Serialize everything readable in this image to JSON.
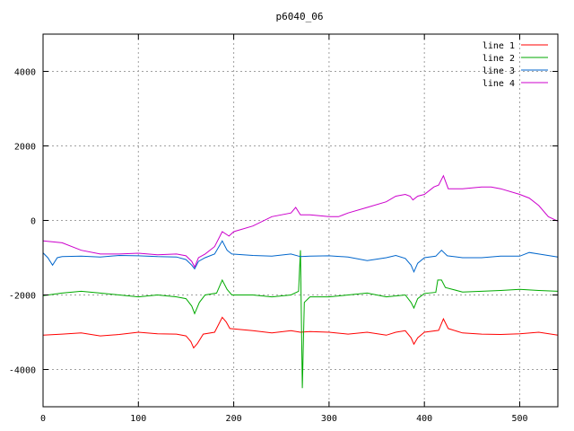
{
  "chart_data": {
    "type": "line",
    "title": "p6040_06",
    "xlabel": "",
    "ylabel": "",
    "xlim": [
      0,
      540
    ],
    "ylim": [
      -5000,
      5000
    ],
    "x_ticks": [
      0,
      100,
      200,
      300,
      400,
      500
    ],
    "y_ticks": [
      -4000,
      -2000,
      0,
      2000,
      4000
    ],
    "grid": true,
    "legend_position": "top-right",
    "series": [
      {
        "name": "line 1",
        "color": "#ff0000",
        "points": [
          [
            0,
            -3080
          ],
          [
            20,
            -3050
          ],
          [
            40,
            -3020
          ],
          [
            60,
            -3100
          ],
          [
            80,
            -3060
          ],
          [
            100,
            -3000
          ],
          [
            120,
            -3040
          ],
          [
            140,
            -3050
          ],
          [
            150,
            -3100
          ],
          [
            155,
            -3250
          ],
          [
            158,
            -3420
          ],
          [
            162,
            -3300
          ],
          [
            168,
            -3050
          ],
          [
            180,
            -3000
          ],
          [
            188,
            -2600
          ],
          [
            192,
            -2720
          ],
          [
            196,
            -2900
          ],
          [
            220,
            -2960
          ],
          [
            240,
            -3020
          ],
          [
            260,
            -2960
          ],
          [
            270,
            -3000
          ],
          [
            280,
            -2980
          ],
          [
            300,
            -3000
          ],
          [
            320,
            -3050
          ],
          [
            340,
            -3000
          ],
          [
            360,
            -3080
          ],
          [
            370,
            -3000
          ],
          [
            380,
            -2960
          ],
          [
            386,
            -3150
          ],
          [
            389,
            -3320
          ],
          [
            393,
            -3150
          ],
          [
            400,
            -3000
          ],
          [
            415,
            -2950
          ],
          [
            420,
            -2640
          ],
          [
            425,
            -2900
          ],
          [
            440,
            -3020
          ],
          [
            460,
            -3050
          ],
          [
            480,
            -3060
          ],
          [
            500,
            -3040
          ],
          [
            520,
            -3000
          ],
          [
            540,
            -3080
          ]
        ]
      },
      {
        "name": "line 2",
        "color": "#00aa00",
        "points": [
          [
            0,
            -2020
          ],
          [
            20,
            -1950
          ],
          [
            40,
            -1900
          ],
          [
            60,
            -1950
          ],
          [
            80,
            -2000
          ],
          [
            100,
            -2050
          ],
          [
            120,
            -2000
          ],
          [
            140,
            -2050
          ],
          [
            150,
            -2100
          ],
          [
            156,
            -2300
          ],
          [
            159,
            -2500
          ],
          [
            164,
            -2200
          ],
          [
            170,
            -2000
          ],
          [
            182,
            -1950
          ],
          [
            188,
            -1600
          ],
          [
            193,
            -1850
          ],
          [
            198,
            -2000
          ],
          [
            220,
            -2000
          ],
          [
            240,
            -2050
          ],
          [
            260,
            -2000
          ],
          [
            268,
            -1900
          ],
          [
            270,
            -800
          ],
          [
            272,
            -4500
          ],
          [
            274,
            -2200
          ],
          [
            280,
            -2050
          ],
          [
            300,
            -2050
          ],
          [
            320,
            -2000
          ],
          [
            340,
            -1950
          ],
          [
            360,
            -2050
          ],
          [
            380,
            -2000
          ],
          [
            386,
            -2200
          ],
          [
            389,
            -2350
          ],
          [
            393,
            -2100
          ],
          [
            400,
            -1960
          ],
          [
            412,
            -1930
          ],
          [
            414,
            -1600
          ],
          [
            418,
            -1600
          ],
          [
            422,
            -1800
          ],
          [
            440,
            -1920
          ],
          [
            460,
            -1900
          ],
          [
            480,
            -1880
          ],
          [
            500,
            -1850
          ],
          [
            520,
            -1880
          ],
          [
            540,
            -1900
          ]
        ]
      },
      {
        "name": "line 3",
        "color": "#0066cc",
        "points": [
          [
            0,
            -870
          ],
          [
            5,
            -1000
          ],
          [
            10,
            -1200
          ],
          [
            15,
            -1000
          ],
          [
            20,
            -970
          ],
          [
            40,
            -960
          ],
          [
            60,
            -980
          ],
          [
            80,
            -940
          ],
          [
            100,
            -950
          ],
          [
            120,
            -970
          ],
          [
            140,
            -980
          ],
          [
            150,
            -1050
          ],
          [
            156,
            -1200
          ],
          [
            159,
            -1300
          ],
          [
            163,
            -1100
          ],
          [
            170,
            -1000
          ],
          [
            180,
            -900
          ],
          [
            188,
            -550
          ],
          [
            193,
            -800
          ],
          [
            198,
            -900
          ],
          [
            220,
            -940
          ],
          [
            240,
            -960
          ],
          [
            260,
            -900
          ],
          [
            270,
            -970
          ],
          [
            280,
            -960
          ],
          [
            300,
            -950
          ],
          [
            320,
            -980
          ],
          [
            340,
            -1080
          ],
          [
            360,
            -1000
          ],
          [
            370,
            -940
          ],
          [
            380,
            -1020
          ],
          [
            386,
            -1200
          ],
          [
            389,
            -1380
          ],
          [
            393,
            -1150
          ],
          [
            400,
            -1000
          ],
          [
            412,
            -960
          ],
          [
            418,
            -800
          ],
          [
            424,
            -950
          ],
          [
            440,
            -1000
          ],
          [
            460,
            -1000
          ],
          [
            480,
            -960
          ],
          [
            500,
            -960
          ],
          [
            510,
            -860
          ],
          [
            520,
            -900
          ],
          [
            540,
            -980
          ]
        ]
      },
      {
        "name": "line 4",
        "color": "#cc00cc",
        "points": [
          [
            0,
            -550
          ],
          [
            20,
            -600
          ],
          [
            40,
            -800
          ],
          [
            60,
            -900
          ],
          [
            80,
            -900
          ],
          [
            100,
            -880
          ],
          [
            120,
            -920
          ],
          [
            140,
            -900
          ],
          [
            150,
            -950
          ],
          [
            156,
            -1100
          ],
          [
            159,
            -1250
          ],
          [
            163,
            -1000
          ],
          [
            170,
            -900
          ],
          [
            180,
            -700
          ],
          [
            188,
            -300
          ],
          [
            195,
            -420
          ],
          [
            200,
            -300
          ],
          [
            220,
            -150
          ],
          [
            240,
            100
          ],
          [
            260,
            200
          ],
          [
            265,
            350
          ],
          [
            270,
            150
          ],
          [
            280,
            150
          ],
          [
            300,
            100
          ],
          [
            310,
            100
          ],
          [
            320,
            200
          ],
          [
            340,
            350
          ],
          [
            360,
            500
          ],
          [
            370,
            650
          ],
          [
            380,
            700
          ],
          [
            385,
            650
          ],
          [
            388,
            550
          ],
          [
            393,
            650
          ],
          [
            400,
            700
          ],
          [
            410,
            900
          ],
          [
            415,
            950
          ],
          [
            420,
            1200
          ],
          [
            425,
            850
          ],
          [
            440,
            850
          ],
          [
            460,
            900
          ],
          [
            470,
            900
          ],
          [
            480,
            850
          ],
          [
            500,
            700
          ],
          [
            510,
            600
          ],
          [
            520,
            400
          ],
          [
            530,
            100
          ],
          [
            540,
            -20
          ]
        ]
      }
    ]
  }
}
